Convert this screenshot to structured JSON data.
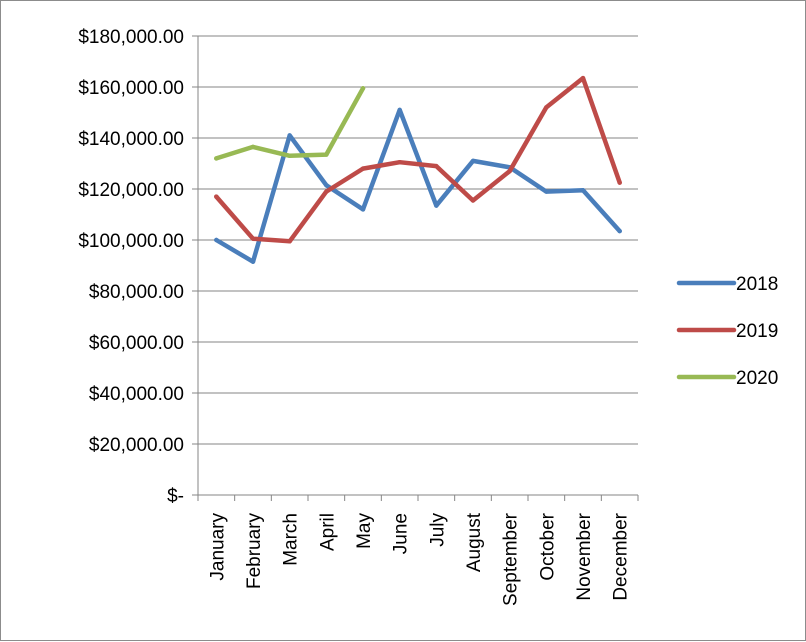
{
  "chart_data": {
    "type": "line",
    "title": "",
    "xlabel": "",
    "ylabel": "",
    "categories": [
      "January",
      "February",
      "March",
      "April",
      "May",
      "June",
      "July",
      "August",
      "September",
      "October",
      "November",
      "December"
    ],
    "ylim": [
      0,
      180000
    ],
    "y_ticks": [
      0,
      20000,
      40000,
      60000,
      80000,
      100000,
      120000,
      140000,
      160000,
      180000
    ],
    "y_tick_labels": [
      "$-",
      "$20,000.00",
      "$40,000.00",
      "$60,000.00",
      "$80,000.00",
      "$100,000.00",
      "$120,000.00",
      "$140,000.00",
      "$160,000.00",
      "$180,000.00"
    ],
    "grid": true,
    "legend_position": "right",
    "series": [
      {
        "name": "2018",
        "color": "#4a7ebb",
        "values": [
          100000,
          91500,
          141000,
          121500,
          112000,
          151000,
          113500,
          131000,
          128500,
          119000,
          119500,
          103500
        ]
      },
      {
        "name": "2019",
        "color": "#be4b48",
        "values": [
          117000,
          100500,
          99500,
          119000,
          128000,
          130500,
          129000,
          115500,
          127000,
          152000,
          163500,
          122500
        ]
      },
      {
        "name": "2020",
        "color": "#98b954",
        "values": [
          132000,
          136500,
          133000,
          133500,
          159500,
          null,
          null,
          null,
          null,
          null,
          null,
          null
        ]
      }
    ]
  }
}
